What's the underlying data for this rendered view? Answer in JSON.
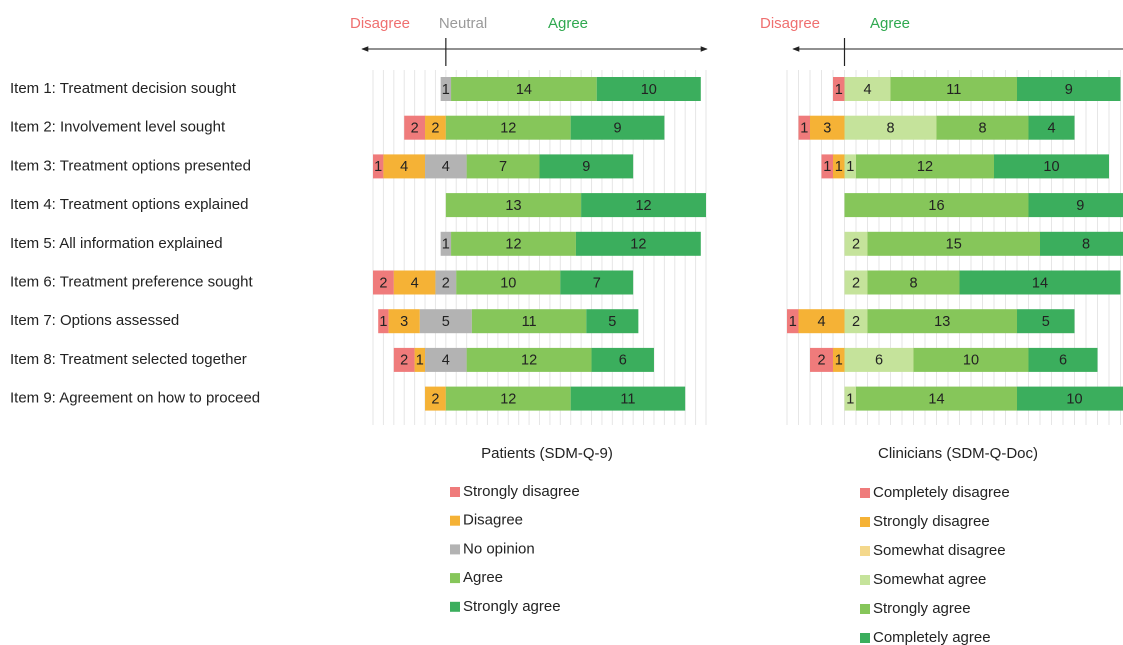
{
  "chart_data": [
    {
      "type": "diverging-bar",
      "title": "Patients (SDM-Q-9)",
      "annotations": [
        "Disagree",
        "Neutral",
        "Agree"
      ],
      "categories": [
        "Item 1: Treatment decision sought",
        "Item 2: Involvement level sought",
        "Item 3: Treatment options presented",
        "Item 4: Treatment options explained",
        "Item 5: All information explained",
        "Item 6: Treatment preference sought",
        "Item 7: Options assessed",
        "Item 8: Treatment selected together",
        "Item 9: Agreement on how to proceed"
      ],
      "xlim": [
        -7,
        25
      ],
      "grid": true,
      "series": [
        {
          "name": "Strongly disagree",
          "color": "#ef7b7b",
          "side": "left",
          "values": [
            0,
            2,
            1,
            0,
            0,
            2,
            1,
            2,
            0
          ]
        },
        {
          "name": "Disagree",
          "color": "#f5b236",
          "side": "left",
          "values": [
            0,
            2,
            4,
            0,
            0,
            4,
            3,
            1,
            2
          ]
        },
        {
          "name": "No opinion",
          "color": "#b3b3b3",
          "side": "center",
          "values": [
            1,
            0,
            4,
            0,
            1,
            2,
            5,
            4,
            0
          ]
        },
        {
          "name": "Agree",
          "color": "#86c65a",
          "side": "right",
          "values": [
            14,
            12,
            7,
            13,
            12,
            10,
            11,
            12,
            12
          ]
        },
        {
          "name": "Strongly agree",
          "color": "#3bae5d",
          "side": "right",
          "values": [
            10,
            9,
            9,
            12,
            12,
            7,
            5,
            6,
            11
          ]
        }
      ]
    },
    {
      "type": "diverging-bar",
      "title": "Clinicians (SDM-Q-Doc)",
      "annotations": [
        "Disagree",
        "Agree"
      ],
      "xlim": [
        -5,
        25
      ],
      "grid": true,
      "series": [
        {
          "name": "Completely disagree",
          "color": "#ef7b7b",
          "side": "left",
          "values": [
            1,
            1,
            1,
            0,
            0,
            0,
            1,
            2,
            0
          ]
        },
        {
          "name": "Strongly disagree",
          "color": "#f5b236",
          "side": "left",
          "values": [
            0,
            3,
            1,
            0,
            0,
            0,
            4,
            1,
            0
          ]
        },
        {
          "name": "Somewhat disagree",
          "color": "#f4d88c",
          "side": "left",
          "values": [
            0,
            0,
            0,
            0,
            0,
            0,
            0,
            0,
            0
          ]
        },
        {
          "name": "Somewhat agree",
          "color": "#c5e39b",
          "side": "right",
          "values": [
            4,
            8,
            1,
            0,
            2,
            2,
            2,
            6,
            1
          ]
        },
        {
          "name": "Strongly agree",
          "color": "#86c65a",
          "side": "right",
          "values": [
            11,
            8,
            12,
            16,
            15,
            8,
            13,
            10,
            14
          ]
        },
        {
          "name": "Completely agree",
          "color": "#3bae5d",
          "side": "right",
          "values": [
            9,
            4,
            10,
            9,
            8,
            14,
            5,
            6,
            10
          ]
        }
      ]
    }
  ]
}
